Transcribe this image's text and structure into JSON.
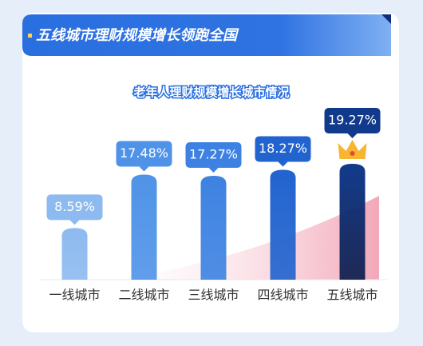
{
  "header": {
    "title": "五线城市理财规模增长领跑全国"
  },
  "chart_data": {
    "type": "bar",
    "title": "老年人理财规模增长城市情况",
    "categories": [
      "一线城市",
      "二线城市",
      "三线城市",
      "四线城市",
      "五线城市"
    ],
    "values": [
      8.59,
      17.48,
      17.27,
      18.27,
      19.27
    ],
    "value_labels": [
      "8.59%",
      "17.48%",
      "17.27%",
      "18.27%",
      "19.27%"
    ],
    "colors": [
      "#8dbaf0",
      "#4f93e8",
      "#3d82e2",
      "#2163cf",
      "#123a8c"
    ]
  }
}
